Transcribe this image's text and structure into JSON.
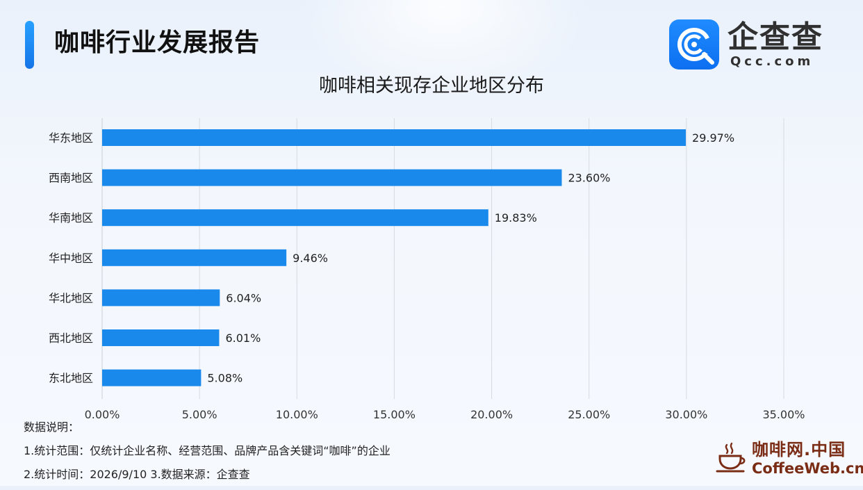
{
  "header": {
    "report_title": "咖啡行业发展报告",
    "accent_color": "#1a7ff0"
  },
  "brand": {
    "name_cn": "企查查",
    "name_en": "Qcc.com",
    "icon": "qcc-logo-icon",
    "color": "#1a82f6"
  },
  "chart_data": {
    "type": "bar",
    "orientation": "horizontal",
    "title": "咖啡相关现存企业地区分布",
    "categories": [
      "华东地区",
      "西南地区",
      "华南地区",
      "华中地区",
      "华北地区",
      "西北地区",
      "东北地区"
    ],
    "values": [
      29.97,
      23.6,
      19.83,
      9.46,
      6.04,
      6.01,
      5.08
    ],
    "value_labels": [
      "29.97%",
      "23.60%",
      "19.83%",
      "9.46%",
      "6.04%",
      "6.01%",
      "5.08%"
    ],
    "unit": "%",
    "xlim": [
      0,
      35
    ],
    "xticks": [
      "0.00%",
      "5.00%",
      "10.00%",
      "15.00%",
      "20.00%",
      "25.00%",
      "30.00%",
      "35.00%"
    ],
    "grid": "vertical",
    "legend": "none",
    "bar_color": "#1a89ec"
  },
  "notes": {
    "heading": "数据说明：",
    "line1": "1.统计范围：仅统计企业名称、经营范围、品牌产品含关键词“咖啡”的企业",
    "line2": "2.统计时间：2026/9/10  3.数据来源：企查查"
  },
  "watermark": {
    "name_cn": "咖啡网.中国",
    "name_en": "CoffeeWeb.cn",
    "icon": "coffee-cup-icon",
    "color": "#7a2d14"
  }
}
